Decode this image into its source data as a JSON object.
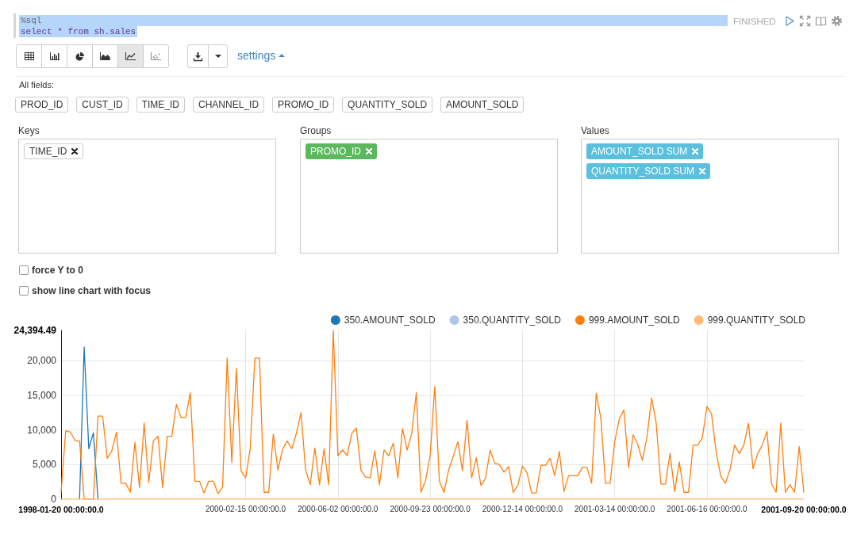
{
  "chart_data": [
    {
      "type": "other",
      "annotations": [
        "%sql",
        "select * from sh.sales",
        "FINISHED",
        "settings",
        "All fields:",
        "PROD_ID",
        "CUST_ID",
        "TIME_ID",
        "CHANNEL_ID",
        "PROMO_ID",
        "QUANTITY_SOLD",
        "AMOUNT_SOLD",
        "Keys",
        "Groups",
        "Values",
        "TIME_ID",
        "PROMO_ID",
        "AMOUNT_SOLD SUM",
        "QUANTITY_SOLD SUM",
        "force Y to 0",
        "show line chart with focus"
      ]
    },
    {
      "type": "line",
      "categories": [
        "1998-01-20 00:00:00.0",
        null,
        null,
        null,
        null,
        null,
        null,
        null,
        null,
        null,
        null,
        null,
        null,
        null,
        null,
        null,
        null,
        null,
        null,
        null,
        null,
        null,
        null,
        null,
        null,
        null,
        null,
        null,
        null,
        null,
        null,
        null,
        null,
        null,
        null,
        null,
        null,
        null,
        null,
        null,
        "2000-02-15 00:00:00.0",
        null,
        null,
        null,
        null,
        null,
        null,
        null,
        null,
        null,
        null,
        null,
        null,
        null,
        null,
        null,
        null,
        null,
        null,
        null,
        "2000-06-02 00:00:00.0",
        null,
        null,
        null,
        null,
        null,
        null,
        null,
        null,
        null,
        null,
        null,
        null,
        null,
        null,
        null,
        null,
        null,
        null,
        null,
        "2000-09-23 00:00:00.0",
        null,
        null,
        null,
        null,
        null,
        null,
        null,
        null,
        null,
        null,
        null,
        null,
        null,
        null,
        null,
        null,
        null,
        null,
        null,
        "2000-12-14 00:00:00.0",
        null,
        null,
        null,
        null,
        null,
        null,
        null,
        null,
        null,
        null,
        null,
        null,
        null,
        null,
        null,
        null,
        null,
        null,
        null,
        "2001-03-14 00:00:00.0",
        null,
        null,
        null,
        null,
        null,
        null,
        null,
        null,
        null,
        null,
        null,
        null,
        null,
        null,
        null,
        null,
        null,
        null,
        null,
        "2001-06-16 00:00:00.0",
        null,
        null,
        null,
        null,
        null,
        null,
        null,
        null,
        null,
        null,
        null,
        null,
        null,
        null,
        null,
        null,
        null,
        null,
        null,
        null,
        "2001-09-20 00:00:00.0"
      ],
      "series": [
        {
          "name": "350.AMOUNT_SOLD",
          "color": "#1f77b4",
          "values": [
            null,
            null,
            null,
            null,
            0,
            22000,
            7300,
            9600,
            0,
            null,
            null,
            null,
            null,
            null,
            null,
            null,
            null,
            null,
            null,
            null,
            null,
            null,
            null,
            null,
            null,
            null,
            null,
            null,
            null,
            null,
            null,
            null,
            null,
            null,
            null,
            null,
            null,
            null,
            null,
            null,
            null,
            null,
            null,
            null,
            null,
            null,
            null,
            null,
            null,
            null,
            null,
            null,
            null,
            null,
            null,
            null,
            null,
            null,
            null,
            null,
            null,
            null,
            null,
            null,
            null,
            null,
            null,
            null,
            null,
            null,
            null,
            null,
            null,
            null,
            null,
            null,
            null,
            null,
            null,
            null,
            null,
            null,
            null,
            null,
            null,
            null,
            null,
            null,
            null,
            null,
            null,
            null,
            null,
            null,
            null,
            null,
            null,
            null,
            null,
            null,
            null,
            null,
            null,
            null,
            null,
            null,
            null,
            null,
            null,
            null,
            null,
            null,
            null,
            null,
            null,
            null,
            null,
            null,
            null,
            null,
            null,
            null,
            null,
            null,
            null,
            null,
            null,
            null,
            null,
            null,
            null,
            null,
            null,
            null,
            null,
            null,
            null,
            null,
            null,
            null,
            null,
            null,
            null,
            null,
            null,
            null,
            null,
            null,
            null,
            null,
            null,
            null,
            null,
            null,
            null,
            null,
            null,
            null,
            null,
            null,
            null,
            null
          ]
        },
        {
          "name": "350.QUANTITY_SOLD",
          "color": "#aec7e8",
          "values": [
            null,
            null,
            null,
            null,
            null,
            null,
            null,
            null,
            null,
            null,
            null,
            null,
            null,
            null,
            null,
            null,
            null,
            null,
            null,
            null,
            null,
            null,
            null,
            null,
            null,
            null,
            null,
            null,
            null,
            null,
            null,
            null,
            null,
            null,
            null,
            null,
            null,
            null,
            null,
            null,
            null,
            null,
            null,
            null,
            null,
            null,
            null,
            null,
            null,
            null,
            null,
            null,
            null,
            null,
            null,
            null,
            null,
            null,
            null,
            null,
            null,
            null,
            null,
            null,
            null,
            null,
            null,
            null,
            null,
            null,
            null,
            null,
            null,
            null,
            null,
            null,
            null,
            null,
            null,
            null,
            null,
            null,
            null,
            null,
            null,
            null,
            null,
            null,
            null,
            null,
            null,
            null,
            null,
            null,
            null,
            null,
            null,
            null,
            null,
            null,
            null,
            null,
            null,
            null,
            null,
            null,
            null,
            null,
            null,
            null,
            null,
            null,
            null,
            null,
            null,
            null,
            null,
            null,
            null,
            null,
            null,
            null,
            null,
            null,
            null,
            null,
            null,
            null,
            null,
            null,
            null,
            null,
            null,
            null,
            null,
            null,
            null,
            null,
            null,
            null,
            null,
            null,
            null,
            null,
            null,
            null,
            null,
            null,
            null,
            null,
            null,
            null,
            null,
            null,
            null,
            null,
            null,
            null,
            null,
            null,
            null,
            null
          ]
        },
        {
          "name": "999.AMOUNT_SOLD",
          "color": "#ff7f0e",
          "values": [
            1000,
            9900,
            9700,
            8500,
            8400,
            0,
            0,
            0,
            12000,
            12000,
            5900,
            7000,
            9700,
            2300,
            2300,
            1000,
            8200,
            1700,
            11000,
            2400,
            8400,
            9100,
            1700,
            9100,
            9100,
            13700,
            11800,
            11800,
            15400,
            2600,
            2600,
            900,
            2600,
            2600,
            800,
            1700,
            20400,
            5300,
            18900,
            4100,
            3100,
            7300,
            20400,
            20400,
            1000,
            1000,
            9400,
            4200,
            7200,
            8400,
            7300,
            9500,
            12500,
            4200,
            2100,
            7400,
            2100,
            7300,
            2100,
            24394.49,
            6300,
            7100,
            6300,
            9500,
            10300,
            4200,
            3200,
            3100,
            7000,
            2100,
            7100,
            6300,
            8100,
            3100,
            10200,
            7100,
            9500,
            15400,
            1000,
            2700,
            6300,
            16300,
            2600,
            1000,
            4200,
            6200,
            8300,
            4100,
            11400,
            3100,
            6000,
            2000,
            3000,
            7100,
            5200,
            5000,
            3900,
            4700,
            1000,
            2000,
            4800,
            3800,
            900,
            900,
            4900,
            4900,
            5900,
            3400,
            6900,
            1100,
            3400,
            3400,
            3400,
            4600,
            4600,
            2300,
            15300,
            11700,
            2300,
            2300,
            8300,
            11600,
            12900,
            4600,
            9300,
            7900,
            5600,
            9000,
            14600,
            11000,
            2200,
            2200,
            6600,
            1100,
            5400,
            1000,
            1000,
            7800,
            7800,
            8900,
            13400,
            12300,
            6800,
            3300,
            2300,
            4300,
            7800,
            6600,
            7800,
            11000,
            4400,
            6600,
            7800,
            9800,
            2200,
            1000,
            11000,
            1000,
            2100,
            1000,
            7600,
            1000
          ]
        },
        {
          "name": "999.QUANTITY_SOLD",
          "color": "#ffbb78",
          "values": [
            0,
            0,
            0,
            0,
            0,
            0,
            0,
            0,
            0,
            0,
            0,
            0,
            0,
            0,
            0,
            0,
            0,
            0,
            0,
            0,
            0,
            0,
            0,
            0,
            0,
            0,
            0,
            0,
            0,
            0,
            0,
            0,
            0,
            0,
            0,
            0,
            0,
            0,
            0,
            0,
            0,
            0,
            0,
            0,
            0,
            0,
            0,
            0,
            0,
            0,
            0,
            0,
            0,
            0,
            0,
            0,
            0,
            0,
            0,
            0,
            0,
            0,
            0,
            0,
            0,
            0,
            0,
            0,
            0,
            0,
            0,
            0,
            0,
            0,
            0,
            0,
            0,
            0,
            0,
            0,
            0,
            0,
            0,
            0,
            0,
            0,
            0,
            0,
            0,
            0,
            0,
            0,
            0,
            0,
            0,
            0,
            0,
            0,
            0,
            0,
            0,
            0,
            0,
            0,
            0,
            0,
            0,
            0,
            0,
            0,
            0,
            0,
            0,
            0,
            0,
            0,
            0,
            0,
            0,
            0,
            0,
            0,
            0,
            0,
            0,
            0,
            0,
            0,
            0,
            0,
            0,
            0,
            0,
            0,
            0,
            0,
            0,
            0,
            0,
            0,
            0,
            0,
            0,
            0,
            0,
            0,
            0,
            0,
            0,
            0,
            0,
            0,
            0,
            0,
            0,
            0,
            0,
            0,
            0,
            0,
            0,
            0
          ]
        }
      ],
      "ylim": [
        0,
        24394.49
      ],
      "yticks": [
        0,
        {
          "value": 5000,
          "label": "5,000"
        },
        {
          "value": 10000,
          "label": "10,000"
        },
        {
          "value": 15000,
          "label": "15,000"
        },
        {
          "value": 20000,
          "label": "20,000"
        },
        {
          "value": 24394.49,
          "label": "24,394.49"
        }
      ],
      "grid": true,
      "legend": "top right"
    }
  ]
}
